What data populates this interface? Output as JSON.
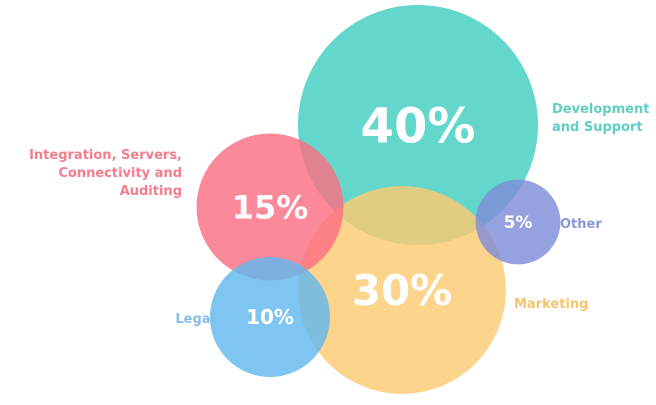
{
  "chart_data": {
    "type": "bubble",
    "title": "",
    "unit": "%",
    "series": [
      {
        "label_lines": [
          "Development",
          "and Support"
        ],
        "value": 40,
        "display": "40%",
        "color": "#4fd1c5"
      },
      {
        "label_lines": [
          "Marketing"
        ],
        "value": 30,
        "display": "30%",
        "color": "#fbcb72"
      },
      {
        "label_lines": [
          "Integration, Servers,",
          "Connectivity and",
          "Auditing"
        ],
        "value": 15,
        "display": "15%",
        "color": "#fb6f83"
      },
      {
        "label_lines": [
          "Legal"
        ],
        "value": 10,
        "display": "10%",
        "color": "#62b8ee"
      },
      {
        "label_lines": [
          "Other"
        ],
        "value": 5,
        "display": "5%",
        "color": "#7e8ed8"
      }
    ],
    "label_colors": {
      "Development": "#5fcfc6",
      "Marketing": "#f4c46c",
      "Integration": "#f27d8e",
      "Legal": "#86bde8",
      "Other": "#8a97d6"
    }
  }
}
